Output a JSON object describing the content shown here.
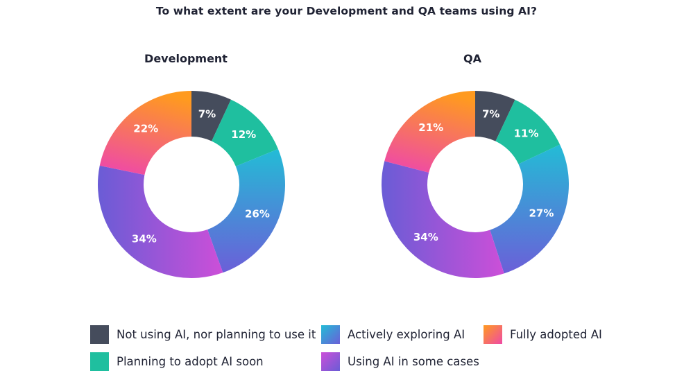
{
  "title": "To what extent are your Development and QA teams using AI?",
  "colors": {
    "not_using": "#454c5c",
    "planning": "#1fbf9f",
    "exploring_start": "#23bcd6",
    "exploring_end": "#6b5fd8",
    "some_cases_start": "#cc4fd8",
    "some_cases_end": "#6a5cd6",
    "fully_start": "#ff9a1f",
    "fully_end": "#ef4aa6"
  },
  "legend": [
    {
      "key": "not_using",
      "label": "Not using AI, nor planning to use it"
    },
    {
      "key": "exploring",
      "label": "Actively exploring AI"
    },
    {
      "key": "fully",
      "label": "Fully adopted AI"
    },
    {
      "key": "planning",
      "label": "Planning to adopt AI soon"
    },
    {
      "key": "some_cases",
      "label": "Using AI in some cases"
    }
  ],
  "chart_data": [
    {
      "type": "pie",
      "variant": "donut",
      "title": "Development",
      "categories": [
        "Not using AI, nor planning to use it",
        "Planning to adopt AI soon",
        "Actively exploring AI",
        "Using AI in some cases",
        "Fully adopted AI"
      ],
      "keys": [
        "not_using",
        "planning",
        "exploring",
        "some_cases",
        "fully"
      ],
      "values": [
        7,
        12,
        26,
        34,
        22
      ],
      "labels": [
        "7%",
        "12%",
        "26%",
        "34%",
        "22%"
      ]
    },
    {
      "type": "pie",
      "variant": "donut",
      "title": "QA",
      "categories": [
        "Not using AI, nor planning to use it",
        "Planning to adopt AI soon",
        "Actively exploring AI",
        "Using AI in some cases",
        "Fully adopted AI"
      ],
      "keys": [
        "not_using",
        "planning",
        "exploring",
        "some_cases",
        "fully"
      ],
      "values": [
        7,
        11,
        27,
        34,
        21
      ],
      "labels": [
        "7%",
        "11%",
        "27%",
        "34%",
        "21%"
      ]
    }
  ]
}
